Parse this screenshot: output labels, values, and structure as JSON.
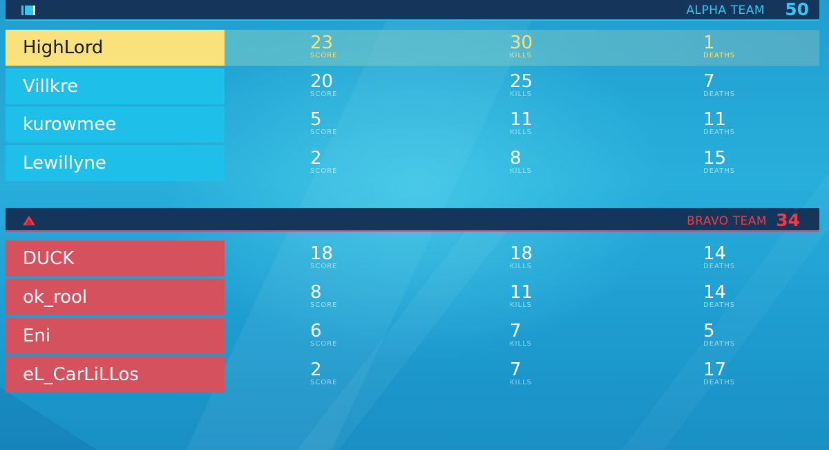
{
  "colors": {
    "alpha_accent": "#33c6f0",
    "bravo_accent": "#ee3b4a",
    "highlight": "#f9e27c",
    "header_bg": "#15365a"
  },
  "alpha": {
    "icon": "alpha-team-icon",
    "name": "ALPHA TEAM",
    "score": "50",
    "players": [
      {
        "name": "HighLord",
        "score": "23",
        "kills": "30",
        "deaths": "1",
        "highlight": true
      },
      {
        "name": "Villkre",
        "score": "20",
        "kills": "25",
        "deaths": "7"
      },
      {
        "name": "kurowmee",
        "score": "5",
        "kills": "11",
        "deaths": "11"
      },
      {
        "name": "Lewillyne",
        "score": "2",
        "kills": "8",
        "deaths": "15"
      }
    ]
  },
  "bravo": {
    "icon": "bravo-team-icon",
    "name": "BRAVO TEAM",
    "score": "34",
    "players": [
      {
        "name": "DUCK",
        "score": "18",
        "kills": "18",
        "deaths": "14"
      },
      {
        "name": "ok_rool",
        "score": "8",
        "kills": "11",
        "deaths": "14"
      },
      {
        "name": "Eni",
        "score": "6",
        "kills": "7",
        "deaths": "5"
      },
      {
        "name": "eL_CarLiLLos",
        "score": "2",
        "kills": "7",
        "deaths": "17"
      }
    ]
  },
  "labels": {
    "score": "SCORE",
    "kills": "KILLS",
    "deaths": "DEATHS"
  }
}
